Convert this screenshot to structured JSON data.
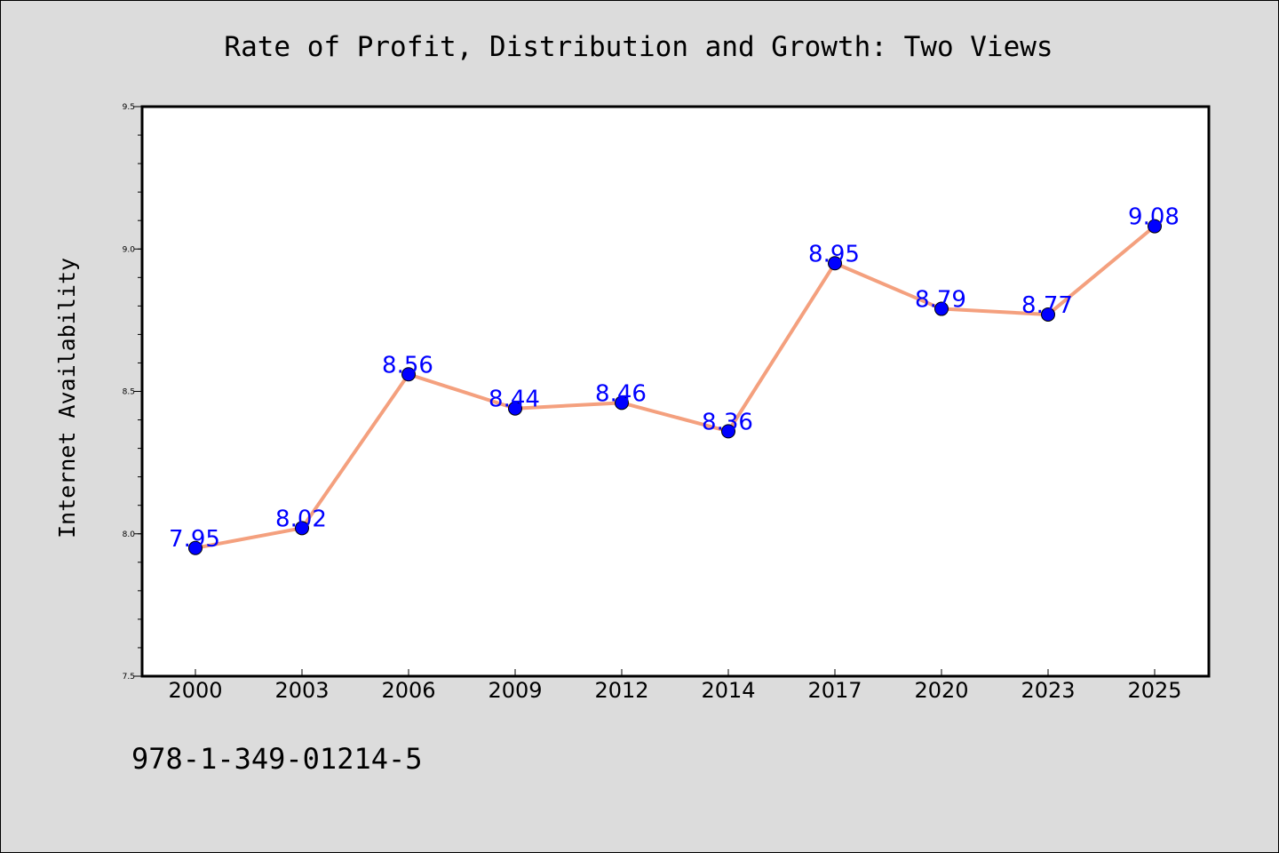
{
  "chart_data": {
    "type": "line",
    "title": "Rate of Profit, Distribution and Growth: Two Views",
    "xlabel": "",
    "ylabel": "Internet Availability",
    "categories": [
      "2000",
      "2003",
      "2006",
      "2009",
      "2012",
      "2014",
      "2017",
      "2020",
      "2023",
      "2025"
    ],
    "series": [
      {
        "values": [
          7.95,
          8.02,
          8.56,
          8.44,
          8.46,
          8.36,
          8.95,
          8.79,
          8.77,
          9.08
        ],
        "data_labels": [
          "7.95",
          "8.02",
          "8.56",
          "8.44",
          "8.46",
          "8.36",
          "8.95",
          "8.79",
          "8.77",
          "9.08"
        ]
      }
    ],
    "ylim": [
      7.5,
      9.5
    ],
    "yticks": [
      "7.5",
      "8.0",
      "8.5",
      "9.0",
      "9.5"
    ],
    "grid": false,
    "legend": "none",
    "colors": {
      "line": "#f4a07e",
      "marker": "#0000ff",
      "data_label": "#0000ff",
      "plot_background": "#ffffff",
      "figure_background": "#dcdcdc"
    }
  },
  "footer": {
    "text": "978-1-349-01214-5"
  }
}
